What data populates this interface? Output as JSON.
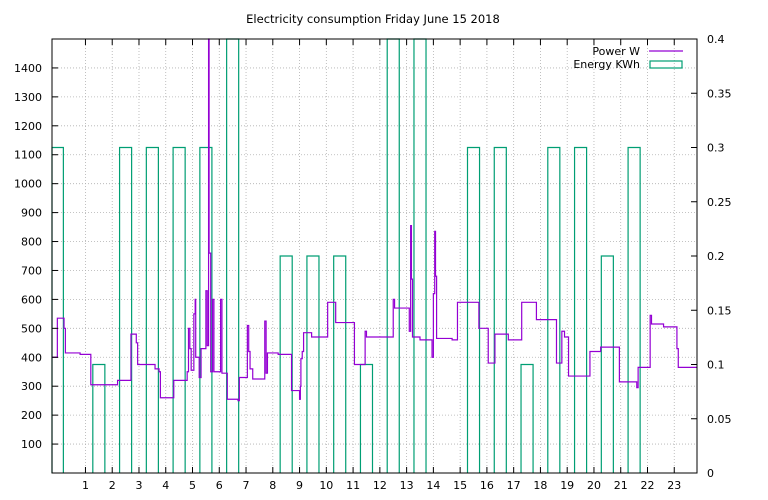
{
  "chart_data": {
    "type": "line",
    "title": "Electricity consumption Friday June 15 2018",
    "x_ticks": [
      1,
      2,
      3,
      4,
      5,
      6,
      7,
      8,
      9,
      10,
      11,
      12,
      13,
      14,
      15,
      16,
      17,
      18,
      19,
      20,
      21,
      22,
      23
    ],
    "xlim": [
      -0.25,
      23.85
    ],
    "y_left": {
      "ylim": [
        0,
        1500
      ],
      "ticks": [
        100,
        200,
        300,
        400,
        500,
        600,
        700,
        800,
        900,
        1000,
        1100,
        1200,
        1300,
        1400
      ]
    },
    "y_right": {
      "ylim": [
        0,
        0.4
      ],
      "ticks": [
        0,
        0.05,
        0.1,
        0.15,
        0.2,
        0.25,
        0.3,
        0.35,
        0.4
      ]
    },
    "grid": true,
    "legend_position": "top-right",
    "colors": {
      "power": "#9400d3",
      "energy": "#009e73",
      "grid": "#b0b0b0"
    },
    "series": [
      {
        "name": "Power W",
        "axis": "left",
        "style": "step",
        "points": [
          [
            -0.25,
            400
          ],
          [
            -0.05,
            400
          ],
          [
            -0.05,
            535
          ],
          [
            0.2,
            535
          ],
          [
            0.2,
            500
          ],
          [
            0.25,
            500
          ],
          [
            0.25,
            415
          ],
          [
            0.8,
            415
          ],
          [
            0.8,
            410
          ],
          [
            1.2,
            410
          ],
          [
            1.2,
            305
          ],
          [
            2.2,
            305
          ],
          [
            2.2,
            320
          ],
          [
            2.7,
            320
          ],
          [
            2.7,
            480
          ],
          [
            2.9,
            480
          ],
          [
            2.9,
            450
          ],
          [
            2.95,
            450
          ],
          [
            2.95,
            375
          ],
          [
            3.6,
            375
          ],
          [
            3.6,
            360
          ],
          [
            3.75,
            360
          ],
          [
            3.75,
            350
          ],
          [
            3.8,
            350
          ],
          [
            3.8,
            260
          ],
          [
            4.3,
            260
          ],
          [
            4.3,
            320
          ],
          [
            4.8,
            320
          ],
          [
            4.8,
            350
          ],
          [
            4.85,
            350
          ],
          [
            4.85,
            500
          ],
          [
            4.9,
            500
          ],
          [
            4.9,
            430
          ],
          [
            4.95,
            430
          ],
          [
            4.95,
            355
          ],
          [
            5.05,
            355
          ],
          [
            5.05,
            550
          ],
          [
            5.1,
            550
          ],
          [
            5.1,
            600
          ],
          [
            5.12,
            600
          ],
          [
            5.12,
            400
          ],
          [
            5.25,
            400
          ],
          [
            5.25,
            330
          ],
          [
            5.32,
            330
          ],
          [
            5.32,
            430
          ],
          [
            5.5,
            430
          ],
          [
            5.5,
            630
          ],
          [
            5.55,
            630
          ],
          [
            5.55,
            440
          ],
          [
            5.6,
            440
          ],
          [
            5.6,
            1500
          ],
          [
            5.62,
            1500
          ],
          [
            5.62,
            760
          ],
          [
            5.68,
            760
          ],
          [
            5.68,
            350
          ],
          [
            5.75,
            350
          ],
          [
            5.75,
            600
          ],
          [
            5.8,
            600
          ],
          [
            5.8,
            350
          ],
          [
            6.05,
            350
          ],
          [
            6.05,
            600
          ],
          [
            6.1,
            600
          ],
          [
            6.1,
            345
          ],
          [
            6.3,
            345
          ],
          [
            6.3,
            255
          ],
          [
            6.7,
            255
          ],
          [
            6.7,
            250
          ],
          [
            6.75,
            250
          ],
          [
            6.75,
            330
          ],
          [
            7.05,
            330
          ],
          [
            7.05,
            510
          ],
          [
            7.1,
            510
          ],
          [
            7.1,
            420
          ],
          [
            7.15,
            420
          ],
          [
            7.15,
            360
          ],
          [
            7.25,
            360
          ],
          [
            7.25,
            325
          ],
          [
            7.7,
            325
          ],
          [
            7.7,
            525
          ],
          [
            7.75,
            525
          ],
          [
            7.75,
            345
          ],
          [
            7.8,
            345
          ],
          [
            7.8,
            415
          ],
          [
            8.2,
            415
          ],
          [
            8.2,
            410
          ],
          [
            8.7,
            410
          ],
          [
            8.7,
            285
          ],
          [
            9.0,
            285
          ],
          [
            9.0,
            255
          ],
          [
            9.03,
            255
          ],
          [
            9.03,
            300
          ],
          [
            9.05,
            300
          ],
          [
            9.05,
            395
          ],
          [
            9.1,
            395
          ],
          [
            9.1,
            420
          ],
          [
            9.15,
            420
          ],
          [
            9.15,
            485
          ],
          [
            9.45,
            485
          ],
          [
            9.45,
            470
          ],
          [
            10.05,
            470
          ],
          [
            10.05,
            590
          ],
          [
            10.35,
            590
          ],
          [
            10.35,
            520
          ],
          [
            11.05,
            520
          ],
          [
            11.05,
            375
          ],
          [
            11.45,
            375
          ],
          [
            11.45,
            490
          ],
          [
            11.5,
            490
          ],
          [
            11.5,
            470
          ],
          [
            12.5,
            470
          ],
          [
            12.5,
            600
          ],
          [
            12.55,
            600
          ],
          [
            12.55,
            570
          ],
          [
            13.1,
            570
          ],
          [
            13.1,
            490
          ],
          [
            13.15,
            490
          ],
          [
            13.15,
            855
          ],
          [
            13.18,
            855
          ],
          [
            13.18,
            670
          ],
          [
            13.22,
            670
          ],
          [
            13.22,
            470
          ],
          [
            13.5,
            470
          ],
          [
            13.5,
            460
          ],
          [
            13.95,
            460
          ],
          [
            13.95,
            400
          ],
          [
            14.0,
            400
          ],
          [
            14.0,
            620
          ],
          [
            14.05,
            620
          ],
          [
            14.05,
            835
          ],
          [
            14.08,
            835
          ],
          [
            14.08,
            680
          ],
          [
            14.12,
            680
          ],
          [
            14.12,
            465
          ],
          [
            14.7,
            465
          ],
          [
            14.7,
            460
          ],
          [
            14.9,
            460
          ],
          [
            14.9,
            590
          ],
          [
            15.7,
            590
          ],
          [
            15.7,
            500
          ],
          [
            16.05,
            500
          ],
          [
            16.05,
            380
          ],
          [
            16.3,
            380
          ],
          [
            16.3,
            480
          ],
          [
            16.8,
            480
          ],
          [
            16.8,
            460
          ],
          [
            17.3,
            460
          ],
          [
            17.3,
            590
          ],
          [
            17.85,
            590
          ],
          [
            17.85,
            530
          ],
          [
            18.6,
            530
          ],
          [
            18.6,
            380
          ],
          [
            18.8,
            380
          ],
          [
            18.8,
            490
          ],
          [
            18.9,
            490
          ],
          [
            18.9,
            470
          ],
          [
            19.05,
            470
          ],
          [
            19.05,
            335
          ],
          [
            19.85,
            335
          ],
          [
            19.85,
            420
          ],
          [
            20.25,
            420
          ],
          [
            20.25,
            435
          ],
          [
            20.95,
            435
          ],
          [
            20.95,
            315
          ],
          [
            21.6,
            315
          ],
          [
            21.6,
            295
          ],
          [
            21.65,
            295
          ],
          [
            21.65,
            365
          ],
          [
            22.1,
            365
          ],
          [
            22.1,
            545
          ],
          [
            22.15,
            545
          ],
          [
            22.15,
            515
          ],
          [
            22.6,
            515
          ],
          [
            22.6,
            505
          ],
          [
            23.1,
            505
          ],
          [
            23.1,
            430
          ],
          [
            23.15,
            430
          ],
          [
            23.15,
            365
          ],
          [
            23.85,
            365
          ]
        ]
      },
      {
        "name": "Energy KWh",
        "axis": "right",
        "style": "impulse-bars",
        "bar_width": 0.45,
        "x": [
          -0.05,
          0.5,
          1,
          1.5,
          2,
          2.5,
          3,
          3.5,
          4,
          4.5,
          5,
          5.5,
          6,
          6.5,
          7,
          7.5,
          8,
          8.5,
          9,
          9.5,
          10,
          10.5,
          11,
          11.5,
          12,
          12.5,
          13,
          13.5,
          14,
          14.5,
          15,
          15.5,
          16,
          16.5,
          17,
          17.5,
          18,
          18.5,
          19,
          19.5,
          20,
          20.5,
          21,
          21.5,
          22,
          22.5,
          23,
          23.5
        ],
        "values": [
          0.3,
          0,
          0,
          0.1,
          0,
          0.3,
          0,
          0.3,
          0,
          0.3,
          0,
          0.3,
          0,
          0.4,
          0,
          0,
          0,
          0.2,
          0,
          0.2,
          0,
          0.2,
          0,
          0.1,
          0,
          0.4,
          0,
          0.4,
          0,
          0,
          0,
          0.3,
          0,
          0.3,
          0,
          0.1,
          0,
          0.3,
          0,
          0.3,
          0,
          0.2,
          0,
          0.3,
          0,
          0,
          0,
          0
        ]
      }
    ]
  }
}
